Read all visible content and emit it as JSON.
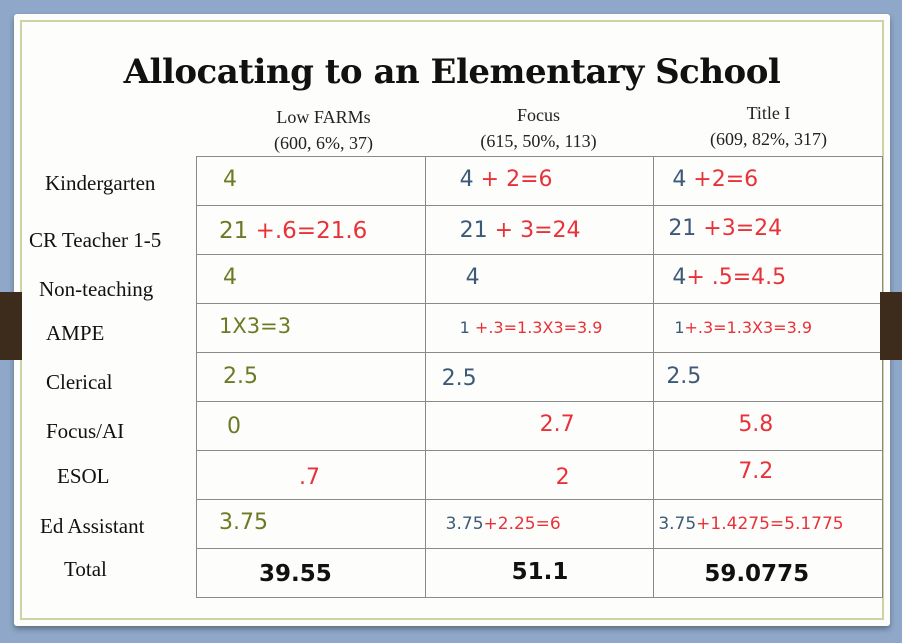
{
  "title": "Allocating to an Elementary School",
  "columns": [
    {
      "name": "Low FARMs",
      "stats": "(600, 6%, 37)"
    },
    {
      "name": "Focus",
      "stats": "(615, 50%, 113)"
    },
    {
      "name": "Title I",
      "stats": "(609, 82%, 317)"
    }
  ],
  "rows": [
    {
      "label": "Kindergarten",
      "cells": [
        {
          "base": "4",
          "add": ""
        },
        {
          "base": "4",
          "add": " + 2=6"
        },
        {
          "base": "4",
          "add": " +2=6"
        }
      ]
    },
    {
      "label": "CR Teacher 1-5",
      "cells": [
        {
          "base": "21",
          "add": " +.6=21.6"
        },
        {
          "base": "21",
          "add": " + 3=24"
        },
        {
          "base": "21",
          "add": " +3=24"
        }
      ]
    },
    {
      "label": "Non-teaching",
      "cells": [
        {
          "base": "4",
          "add": ""
        },
        {
          "base": "4",
          "add": ""
        },
        {
          "base": "4",
          "add": "+ .5=4.5"
        }
      ]
    },
    {
      "label": "AMPE",
      "cells": [
        {
          "base": "1X3=3",
          "add": ""
        },
        {
          "base": "1",
          "add": " +.3=1.3X3=3.9"
        },
        {
          "base": "1",
          "add": "+.3=1.3X3=3.9"
        }
      ]
    },
    {
      "label": "Clerical",
      "cells": [
        {
          "base": "2.5",
          "add": ""
        },
        {
          "base": "2.5",
          "add": ""
        },
        {
          "base": "2.5",
          "add": ""
        }
      ]
    },
    {
      "label": "Focus/AI",
      "cells": [
        {
          "base": "0",
          "add": ""
        },
        {
          "base": "",
          "add": "2.7"
        },
        {
          "base": "",
          "add": "5.8"
        }
      ]
    },
    {
      "label": "ESOL",
      "cells": [
        {
          "base": "",
          "add": ".7"
        },
        {
          "base": "",
          "add": "2"
        },
        {
          "base": "",
          "add": "7.2"
        }
      ]
    },
    {
      "label": "Ed Assistant",
      "cells": [
        {
          "base": "3.75",
          "add": ""
        },
        {
          "base": "3.75",
          "add": "+2.25=6"
        },
        {
          "base": "3.75",
          "add": "+1.4275=5.1775"
        }
      ]
    }
  ],
  "total": {
    "label": "Total",
    "values": [
      "39.55",
      "51.1",
      "59.0775"
    ]
  },
  "colors": {
    "base_low": "#6b7a24",
    "base_other": "#3c5a78",
    "addition": "#e8323a"
  }
}
